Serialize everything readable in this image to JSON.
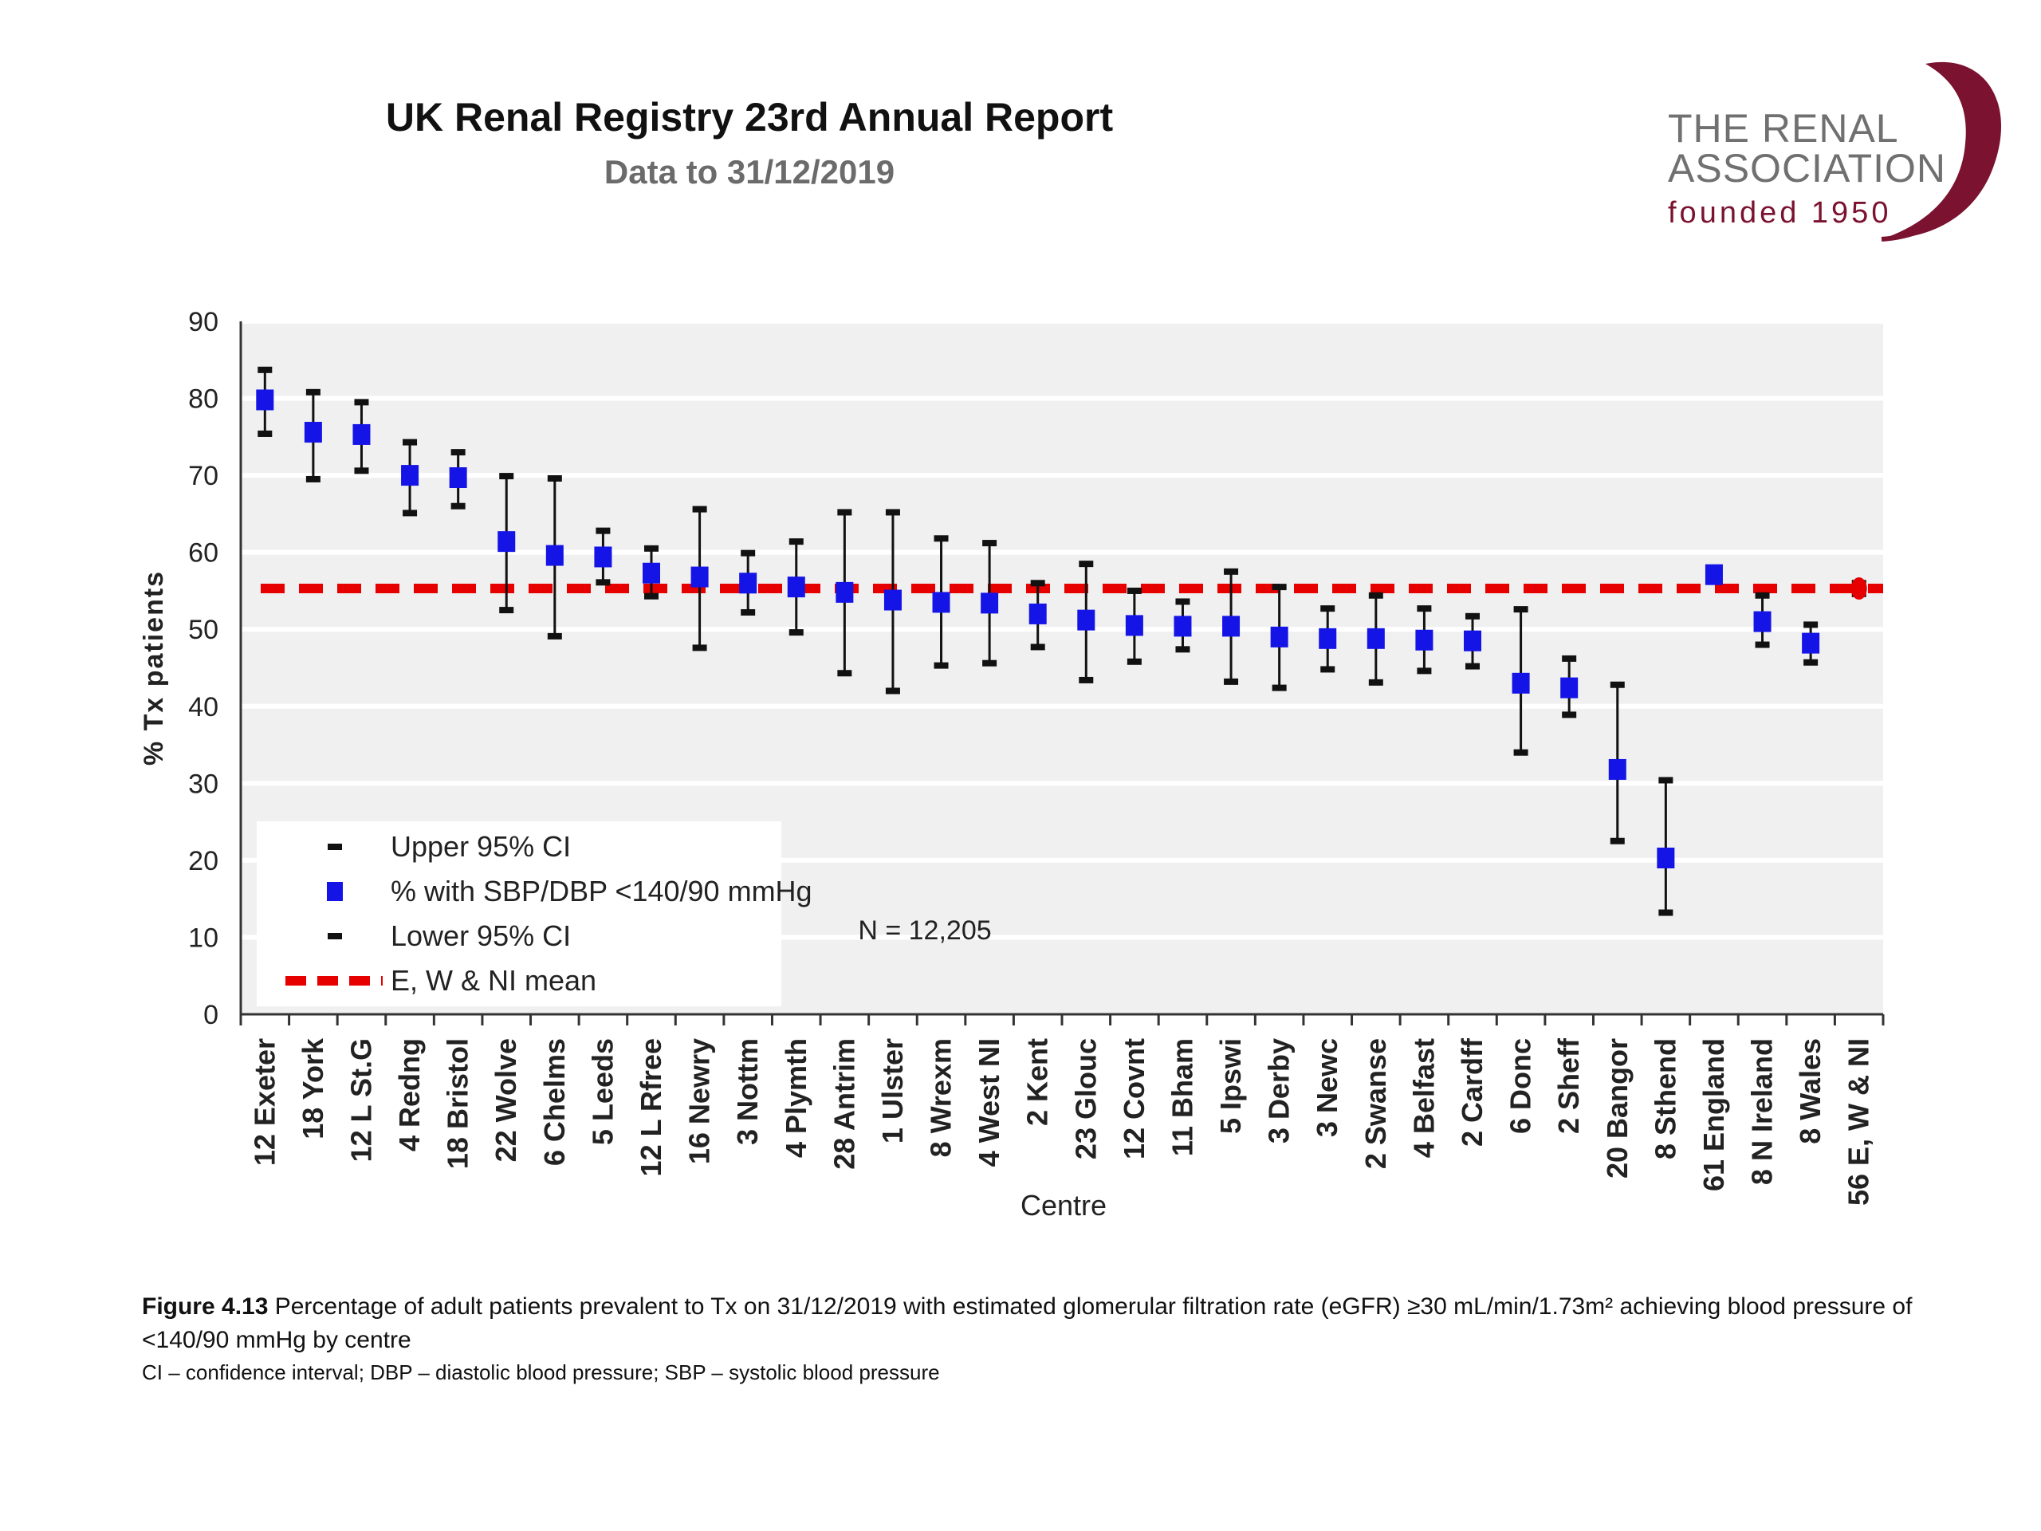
{
  "header": {
    "title": "UK Renal Registry 23rd Annual Report",
    "subtitle": "Data to 31/12/2019"
  },
  "logo": {
    "line1": "THE RENAL",
    "line2": "ASSOCIATION",
    "line3": "founded 1950",
    "color": "#7a1230"
  },
  "chart_data": {
    "type": "scatter",
    "title": "",
    "xlabel": "Centre",
    "ylabel": "% Tx patients",
    "ylim": [
      0,
      90
    ],
    "yticks": [
      0,
      10,
      20,
      30,
      40,
      50,
      60,
      70,
      80,
      90
    ],
    "grid": true,
    "annotation": "N = 12,205",
    "mean": 55.3,
    "legend": {
      "placement": "bottom-left",
      "items": [
        "Upper 95% CI",
        "% with SBP/DBP <140/90 mmHg",
        "Lower 95% CI",
        "E, W & NI mean"
      ]
    },
    "colors": {
      "point": "#1414e6",
      "ci": "#111111",
      "mean": "#e60000",
      "plot_bg": "#f0f0f0"
    },
    "categories": [
      "12 Exeter",
      "18 York",
      "12 L St.G",
      "4 Redng",
      "18 Bristol",
      "22 Wolve",
      "6 Chelms",
      "5 Leeds",
      "12 L Rfree",
      "16 Newry",
      "3 Nottm",
      "4 Plymth",
      "28 Antrim",
      "1 Ulster",
      "8 Wrexm",
      "4 West NI",
      "2 Kent",
      "23 Glouc",
      "12 Covnt",
      "11 Bham",
      "5 Ipswi",
      "3 Derby",
      "3 Newc",
      "2 Swanse",
      "4 Belfast",
      "2 Cardff",
      "6 Donc",
      "2 Sheff",
      "20 Bangor",
      "8 Sthend",
      "61 England",
      "8 N Ireland",
      "8 Wales",
      "56 E, W & NI"
    ],
    "values": [
      79.8,
      75.6,
      75.3,
      70.0,
      69.7,
      61.4,
      59.6,
      59.4,
      57.3,
      56.8,
      56.0,
      55.5,
      54.8,
      53.8,
      53.5,
      53.4,
      52.0,
      51.2,
      50.5,
      50.4,
      50.4,
      49.0,
      48.8,
      48.8,
      48.6,
      48.5,
      43.0,
      42.4,
      31.8,
      20.3,
      57.1,
      51.0,
      48.2,
      55.3
    ],
    "upper": [
      83.7,
      80.8,
      79.5,
      74.3,
      73.0,
      69.9,
      69.6,
      62.8,
      60.5,
      65.6,
      59.9,
      61.4,
      65.2,
      65.2,
      61.8,
      61.2,
      56.0,
      58.5,
      55.0,
      53.6,
      57.5,
      55.5,
      52.7,
      54.4,
      52.7,
      51.7,
      52.6,
      46.2,
      42.8,
      30.4,
      57.9,
      54.4,
      50.6,
      56.0
    ],
    "lower": [
      75.4,
      69.5,
      70.6,
      65.1,
      66.0,
      52.5,
      49.1,
      56.1,
      54.3,
      47.6,
      52.2,
      49.6,
      44.3,
      42.0,
      45.3,
      45.6,
      47.7,
      43.4,
      45.8,
      47.4,
      43.2,
      42.4,
      44.8,
      43.1,
      44.6,
      45.2,
      34.0,
      38.9,
      22.5,
      13.2,
      56.2,
      48.0,
      45.7,
      54.6
    ]
  },
  "caption": {
    "figure_label": "Figure 4.13",
    "text": "Percentage of adult patients prevalent to Tx on 31/12/2019 with estimated glomerular filtration rate (eGFR) ≥30 mL/min/1.73m² achieving blood pressure of <140/90 mmHg by centre",
    "notes": "CI – confidence interval; DBP – diastolic blood pressure; SBP – systolic blood pressure"
  }
}
